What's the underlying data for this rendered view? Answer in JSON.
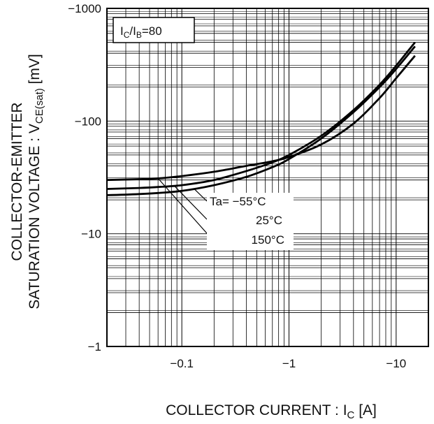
{
  "chart_data": {
    "type": "line",
    "xscale": "log",
    "yscale": "log",
    "xlim": [
      -0.02,
      -20
    ],
    "ylim": [
      -1,
      -1000
    ],
    "grid": true,
    "xticks": [
      {
        "value": -0.1,
        "label": "−0.1"
      },
      {
        "value": -1,
        "label": "−1"
      },
      {
        "value": -10,
        "label": "−10"
      }
    ],
    "yticks": [
      {
        "value": -1,
        "label": "−1"
      },
      {
        "value": -10,
        "label": "−10"
      },
      {
        "value": -100,
        "label": "−100"
      },
      {
        "value": -1000,
        "label": "−1000"
      }
    ],
    "xlabel": {
      "main": "COLLECTOR CURRENT : I",
      "sub": "C",
      "unit": " [A]"
    },
    "ylabel": {
      "line1": "COLLECTOR-EMITTER",
      "line2_main": "SATURATION VOLTAGE : V",
      "line2_sub": "CE(sat)",
      "line2_unit": " [mV]"
    },
    "condition": {
      "main1": "I",
      "sub1": "C",
      "slash": "/I",
      "sub2": "B",
      "rest": "=80"
    },
    "series": [
      {
        "name": "Ta= −55°C",
        "x": [
          -0.02,
          -0.04,
          -0.06,
          -0.1,
          -0.2,
          -0.4,
          -0.7,
          -1,
          -2,
          -4,
          -7,
          -10,
          -15
        ],
        "y": [
          -22,
          -22.5,
          -23,
          -24,
          -27,
          -32,
          -39,
          -46,
          -70,
          -120,
          -200,
          -290,
          -460
        ]
      },
      {
        "name": "25°C",
        "x": [
          -0.02,
          -0.04,
          -0.06,
          -0.1,
          -0.2,
          -0.4,
          -0.7,
          -1,
          -2,
          -4,
          -7,
          -10,
          -15
        ],
        "y": [
          -25,
          -25.5,
          -26,
          -27,
          -30,
          -36,
          -43,
          -50,
          -74,
          -125,
          -210,
          -310,
          -500
        ]
      },
      {
        "name": "150°C",
        "x": [
          -0.02,
          -0.04,
          -0.06,
          -0.1,
          -0.2,
          -0.4,
          -0.7,
          -1,
          -2,
          -4,
          -7,
          -10,
          -15
        ],
        "y": [
          -30,
          -30.5,
          -31,
          -32.5,
          -35.5,
          -40,
          -44,
          -48,
          -62,
          -95,
          -160,
          -240,
          -380
        ]
      }
    ],
    "series_labels": [
      "Ta= −55°C",
      "25°C",
      "150°C"
    ]
  }
}
